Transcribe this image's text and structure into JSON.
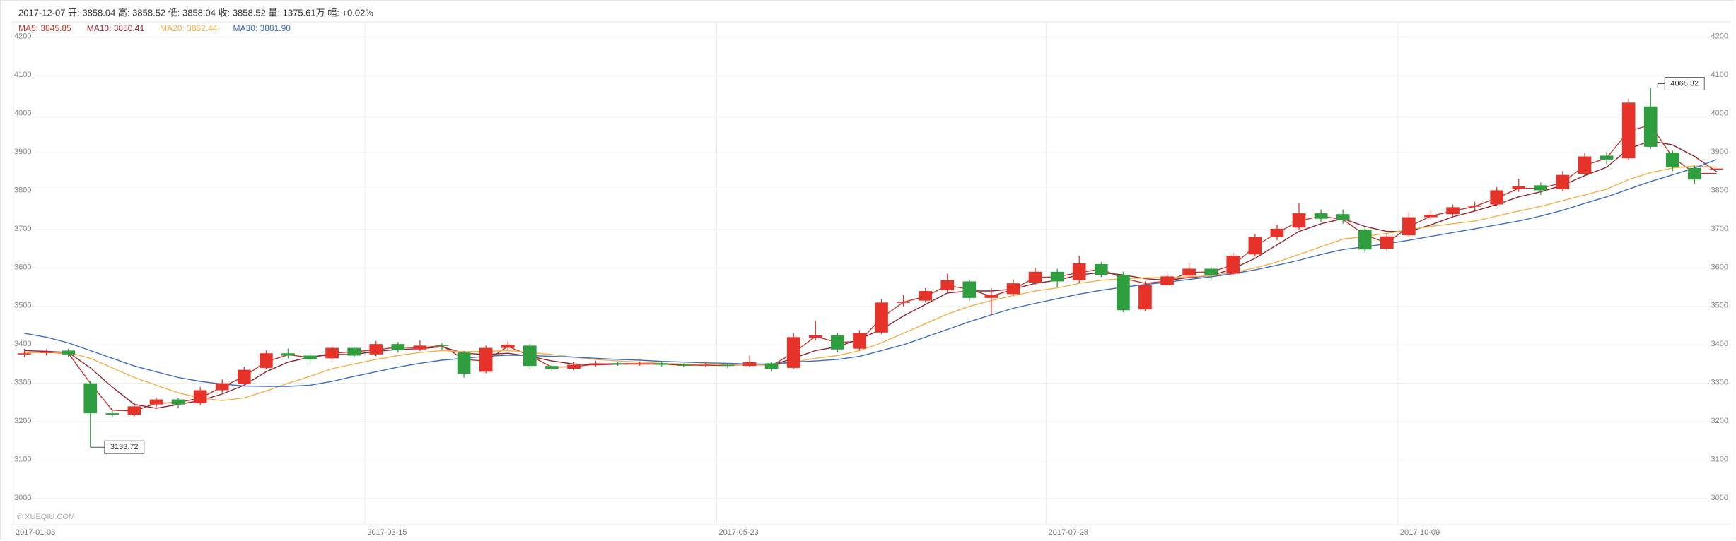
{
  "chart_data": {
    "type": "candlestick",
    "subtitle": "2017-12-07 开: 3858.04 高: 3858.52 低: 3858.04 收: 3858.52 量: 1375.61万 幅: +0.02%",
    "watermark": "© XUEQIU.COM",
    "annotations": [
      "4068.32",
      "3133.72"
    ],
    "up_color": "#e5332a",
    "down_color": "#2f9e3f",
    "grid": true,
    "ylim": [
      2932,
      4240
    ],
    "yticks": [
      3000,
      3100,
      3200,
      3300,
      3400,
      3500,
      3600,
      3700,
      3800,
      3900,
      4000,
      4100,
      4200
    ],
    "categories": [
      "2017-01-03",
      null,
      null,
      null,
      null,
      null,
      null,
      null,
      null,
      null,
      null,
      null,
      null,
      null,
      null,
      null,
      "2017-03-15",
      null,
      null,
      null,
      null,
      null,
      null,
      null,
      null,
      null,
      null,
      null,
      null,
      null,
      null,
      null,
      "2017-05-23",
      null,
      null,
      null,
      null,
      null,
      null,
      null,
      null,
      null,
      null,
      null,
      null,
      null,
      null,
      "2017-07-28",
      null,
      null,
      null,
      null,
      null,
      null,
      null,
      null,
      null,
      null,
      null,
      null,
      null,
      null,
      null,
      "2017-10-09",
      null,
      null,
      null,
      null,
      null,
      null,
      null,
      null,
      null,
      null,
      null,
      null,
      null,
      null
    ],
    "ohlc": [
      [
        3375,
        3390,
        3368,
        3378
      ],
      [
        3380,
        3388,
        3372,
        3382
      ],
      [
        3385,
        3390,
        3368,
        3375
      ],
      [
        3300,
        3305,
        3133.72,
        3222
      ],
      [
        3222,
        3228,
        3212,
        3218
      ],
      [
        3218,
        3248,
        3214,
        3240
      ],
      [
        3245,
        3262,
        3238,
        3258
      ],
      [
        3258,
        3262,
        3235,
        3245
      ],
      [
        3248,
        3290,
        3244,
        3282
      ],
      [
        3282,
        3310,
        3276,
        3300
      ],
      [
        3298,
        3342,
        3295,
        3335
      ],
      [
        3340,
        3385,
        3336,
        3378
      ],
      [
        3378,
        3390,
        3365,
        3372
      ],
      [
        3372,
        3378,
        3352,
        3362
      ],
      [
        3365,
        3398,
        3360,
        3392
      ],
      [
        3392,
        3396,
        3366,
        3372
      ],
      [
        3375,
        3410,
        3370,
        3402
      ],
      [
        3402,
        3408,
        3380,
        3386
      ],
      [
        3388,
        3412,
        3384,
        3398
      ],
      [
        3400,
        3404,
        3386,
        3398
      ],
      [
        3380,
        3384,
        3315,
        3325
      ],
      [
        3330,
        3398,
        3326,
        3392
      ],
      [
        3392,
        3410,
        3388,
        3400
      ],
      [
        3398,
        3402,
        3336,
        3345
      ],
      [
        3345,
        3350,
        3330,
        3338
      ],
      [
        3338,
        3355,
        3334,
        3348
      ],
      [
        3348,
        3358,
        3344,
        3352
      ],
      [
        3352,
        3356,
        3345,
        3350
      ],
      [
        3350,
        3357,
        3346,
        3352
      ],
      [
        3352,
        3355,
        3344,
        3348
      ],
      [
        3348,
        3352,
        3342,
        3346
      ],
      [
        3346,
        3353,
        3342,
        3348
      ],
      [
        3348,
        3352,
        3340,
        3345
      ],
      [
        3345,
        3372,
        3342,
        3355
      ],
      [
        3352,
        3356,
        3330,
        3338
      ],
      [
        3340,
        3430,
        3338,
        3420
      ],
      [
        3418,
        3462,
        3412,
        3425
      ],
      [
        3425,
        3430,
        3380,
        3388
      ],
      [
        3390,
        3438,
        3385,
        3430
      ],
      [
        3432,
        3518,
        3428,
        3510
      ],
      [
        3510,
        3530,
        3500,
        3512
      ],
      [
        3515,
        3548,
        3510,
        3540
      ],
      [
        3542,
        3585,
        3538,
        3568
      ],
      [
        3565,
        3570,
        3515,
        3522
      ],
      [
        3522,
        3548,
        3478,
        3530
      ],
      [
        3532,
        3570,
        3528,
        3560
      ],
      [
        3562,
        3600,
        3556,
        3590
      ],
      [
        3590,
        3598,
        3550,
        3565
      ],
      [
        3568,
        3632,
        3562,
        3612
      ],
      [
        3610,
        3615,
        3576,
        3582
      ],
      [
        3582,
        3590,
        3485,
        3490
      ],
      [
        3492,
        3565,
        3488,
        3555
      ],
      [
        3555,
        3585,
        3550,
        3578
      ],
      [
        3580,
        3612,
        3575,
        3598
      ],
      [
        3598,
        3602,
        3570,
        3582
      ],
      [
        3585,
        3640,
        3580,
        3632
      ],
      [
        3635,
        3688,
        3630,
        3680
      ],
      [
        3680,
        3712,
        3672,
        3702
      ],
      [
        3705,
        3768,
        3700,
        3742
      ],
      [
        3742,
        3752,
        3720,
        3728
      ],
      [
        3740,
        3752,
        3715,
        3725
      ],
      [
        3700,
        3705,
        3640,
        3648
      ],
      [
        3650,
        3690,
        3645,
        3682
      ],
      [
        3685,
        3745,
        3680,
        3732
      ],
      [
        3732,
        3748,
        3726,
        3738
      ],
      [
        3740,
        3765,
        3735,
        3758
      ],
      [
        3760,
        3772,
        3748,
        3762
      ],
      [
        3765,
        3810,
        3760,
        3802
      ],
      [
        3805,
        3832,
        3798,
        3812
      ],
      [
        3815,
        3822,
        3790,
        3802
      ],
      [
        3805,
        3852,
        3800,
        3842
      ],
      [
        3845,
        3898,
        3840,
        3890
      ],
      [
        3892,
        3902,
        3870,
        3882
      ],
      [
        3885,
        4040,
        3880,
        4030
      ],
      [
        4020,
        4068.32,
        3910,
        3915
      ],
      [
        3900,
        3905,
        3852,
        3862
      ],
      [
        3860,
        3866,
        3818,
        3830
      ],
      [
        3858.04,
        3858.52,
        3858.04,
        3858.52
      ]
    ],
    "series": [
      {
        "name": "MA5: 3845.85",
        "color": "#c0392b",
        "values": [
          3380,
          3380,
          3378,
          3300,
          3230,
          3228,
          3248,
          3250,
          3262,
          3290,
          3318,
          3356,
          3374,
          3367,
          3378,
          3382,
          3387,
          3394,
          3392,
          3398,
          3362,
          3358,
          3396,
          3372,
          3342,
          3343,
          3350,
          3351,
          3351,
          3350,
          3347,
          3347,
          3346,
          3350,
          3346,
          3379,
          3422,
          3406,
          3409,
          3470,
          3511,
          3526,
          3554,
          3545,
          3526,
          3545,
          3575,
          3577,
          3588,
          3597,
          3573,
          3560,
          3566,
          3588,
          3590,
          3607,
          3656,
          3691,
          3722,
          3735,
          3726,
          3686,
          3665,
          3707,
          3735,
          3748,
          3760,
          3782,
          3807,
          3807,
          3822,
          3866,
          3886,
          3956,
          3972,
          3888,
          3846,
          3845.85
        ]
      },
      {
        "name": "MA10: 3850.41",
        "color": "#8e2430",
        "values": [
          3385,
          3383,
          3380,
          3340,
          3290,
          3245,
          3235,
          3245,
          3255,
          3272,
          3295,
          3330,
          3355,
          3368,
          3375,
          3375,
          3383,
          3388,
          3390,
          3395,
          3378,
          3375,
          3378,
          3370,
          3358,
          3350,
          3348,
          3350,
          3350,
          3350,
          3349,
          3348,
          3347,
          3348,
          3347,
          3365,
          3385,
          3395,
          3415,
          3440,
          3475,
          3505,
          3535,
          3540,
          3540,
          3545,
          3560,
          3568,
          3582,
          3588,
          3582,
          3572,
          3568,
          3575,
          3580,
          3598,
          3625,
          3660,
          3695,
          3715,
          3728,
          3708,
          3695,
          3695,
          3712,
          3733,
          3748,
          3765,
          3785,
          3798,
          3815,
          3840,
          3862,
          3910,
          3930,
          3920,
          3890,
          3850.41
        ]
      },
      {
        "name": "MA20: 3862.44",
        "color": "#f5b04e",
        "values": [
          3380,
          3380,
          3380,
          3365,
          3340,
          3315,
          3295,
          3275,
          3262,
          3255,
          3262,
          3280,
          3300,
          3318,
          3338,
          3350,
          3362,
          3372,
          3380,
          3385,
          3382,
          3383,
          3385,
          3380,
          3375,
          3368,
          3362,
          3358,
          3355,
          3352,
          3350,
          3349,
          3348,
          3348,
          3347,
          3355,
          3365,
          3372,
          3385,
          3405,
          3430,
          3455,
          3480,
          3500,
          3515,
          3528,
          3540,
          3548,
          3560,
          3568,
          3572,
          3574,
          3575,
          3577,
          3580,
          3588,
          3600,
          3615,
          3635,
          3655,
          3675,
          3682,
          3690,
          3700,
          3708,
          3715,
          3722,
          3735,
          3748,
          3760,
          3775,
          3790,
          3805,
          3830,
          3848,
          3860,
          3865,
          3862.44
        ]
      },
      {
        "name": "MA30: 3881.90",
        "color": "#3d6dc4",
        "values": [
          3430,
          3420,
          3405,
          3385,
          3365,
          3345,
          3330,
          3315,
          3305,
          3298,
          3293,
          3292,
          3292,
          3295,
          3305,
          3318,
          3330,
          3342,
          3352,
          3360,
          3365,
          3370,
          3373,
          3372,
          3370,
          3368,
          3365,
          3362,
          3360,
          3357,
          3355,
          3353,
          3352,
          3350,
          3350,
          3355,
          3358,
          3362,
          3370,
          3385,
          3400,
          3420,
          3440,
          3460,
          3478,
          3495,
          3508,
          3520,
          3532,
          3542,
          3550,
          3557,
          3563,
          3570,
          3577,
          3585,
          3595,
          3607,
          3620,
          3635,
          3648,
          3655,
          3663,
          3672,
          3682,
          3692,
          3702,
          3712,
          3722,
          3735,
          3750,
          3768,
          3785,
          3805,
          3825,
          3842,
          3860,
          3881.9
        ]
      }
    ]
  }
}
